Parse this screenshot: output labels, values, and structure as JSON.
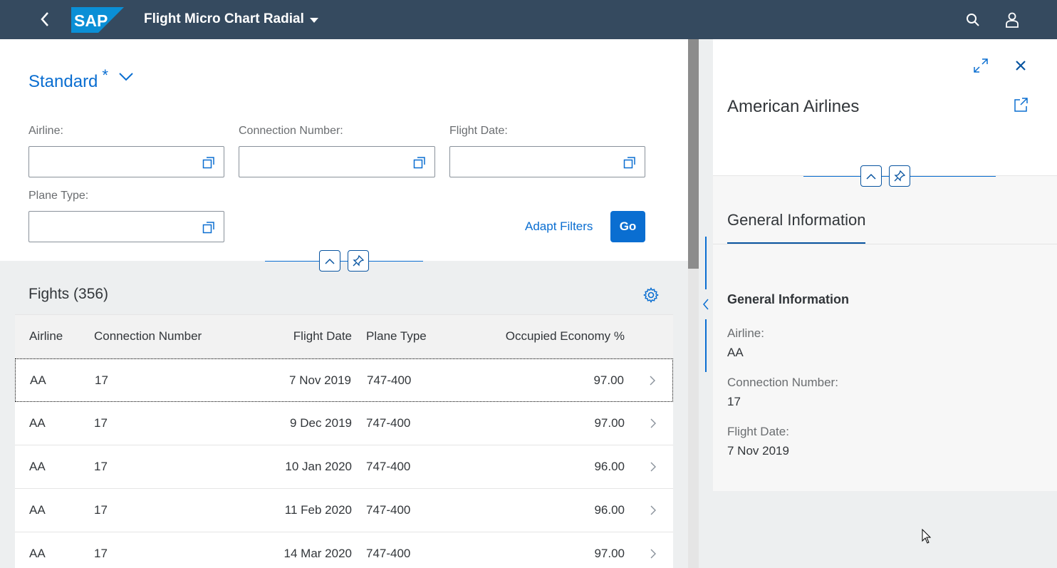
{
  "shell": {
    "app_title": "Flight Micro Chart Radial",
    "logo_text": "SAP"
  },
  "filter_bar": {
    "variant_name": "Standard",
    "variant_modified_marker": "*",
    "fields": [
      {
        "label": "Airline:",
        "value": ""
      },
      {
        "label": "Connection Number:",
        "value": ""
      },
      {
        "label": "Flight Date:",
        "value": ""
      },
      {
        "label": "Plane Type:",
        "value": ""
      }
    ],
    "adapt_filters_label": "Adapt Filters",
    "go_label": "Go"
  },
  "table": {
    "title": "Fights (356)",
    "columns": [
      "Airline",
      "Connection Number",
      "Flight Date",
      "Plane Type",
      "Occupied Economy %"
    ],
    "rows": [
      {
        "airline": "AA",
        "connection": "17",
        "date": "7 Nov 2019",
        "plane": "747-400",
        "occupied": "97.00"
      },
      {
        "airline": "AA",
        "connection": "17",
        "date": "9 Dec 2019",
        "plane": "747-400",
        "occupied": "97.00"
      },
      {
        "airline": "AA",
        "connection": "17",
        "date": "10 Jan 2020",
        "plane": "747-400",
        "occupied": "96.00"
      },
      {
        "airline": "AA",
        "connection": "17",
        "date": "11 Feb 2020",
        "plane": "747-400",
        "occupied": "96.00"
      },
      {
        "airline": "AA",
        "connection": "17",
        "date": "14 Mar 2020",
        "plane": "747-400",
        "occupied": "97.00"
      }
    ]
  },
  "object_page": {
    "title": "American Airlines",
    "tab_label": "General Information",
    "section_title": "General Information",
    "fields": [
      {
        "label": "Airline:",
        "value": "AA"
      },
      {
        "label": "Connection Number:",
        "value": "17"
      },
      {
        "label": "Flight Date:",
        "value": "7 Nov 2019"
      }
    ]
  },
  "colors": {
    "shell_bg": "#354a5f",
    "accent": "#0a6ed1",
    "text": "#32363a"
  }
}
